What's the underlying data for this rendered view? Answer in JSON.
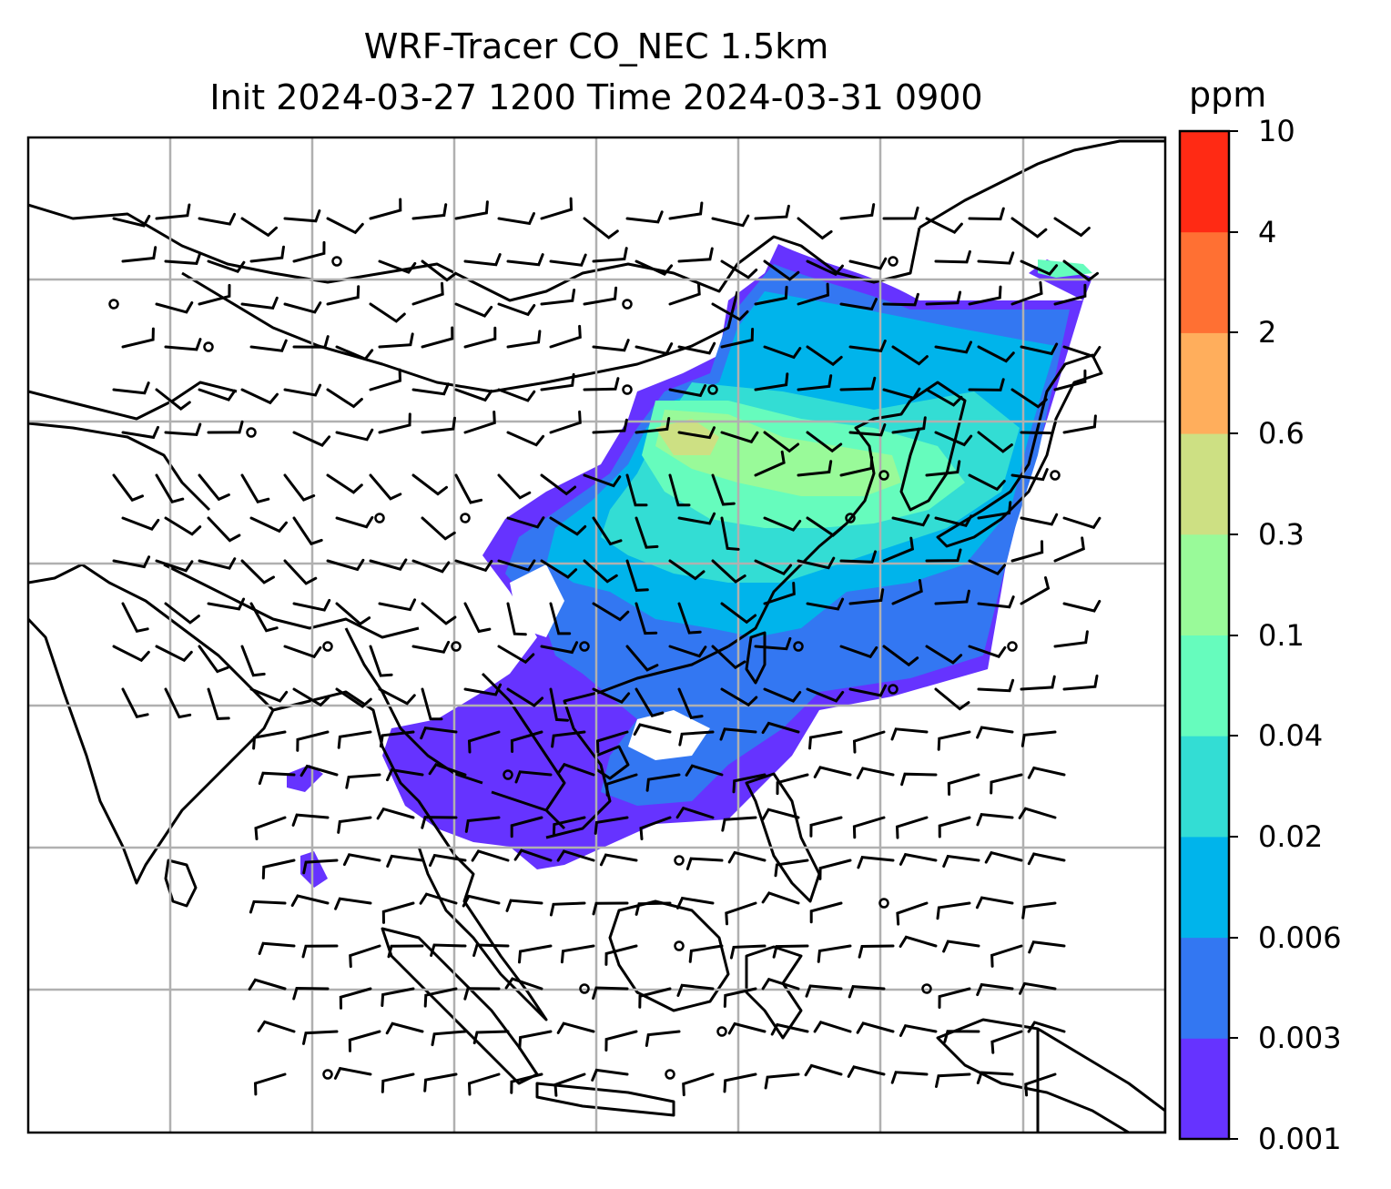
{
  "title_line1": "WRF-Tracer CO_NEC 1.5km",
  "title_line2": "Init 2024-03-27 1200 Time 2024-03-31 0900",
  "colorbar": {
    "unit": "ppm",
    "levels": [
      "0.001",
      "0.003",
      "0.006",
      "0.02",
      "0.04",
      "0.1",
      "0.3",
      "0.6",
      "2",
      "4",
      "10"
    ],
    "colors": [
      "#6633ff",
      "#3377f2",
      "#00b4eb",
      "#33ddd4",
      "#66fcbd",
      "#99fa99",
      "#cde083",
      "#ffae5c",
      "#ff7033",
      "#ff2a14"
    ]
  },
  "map": {
    "gridlines": true,
    "features": [
      "coastlines",
      "country-borders",
      "wind-barbs",
      "calm-circles"
    ],
    "shading_field": "CO tracer concentration"
  }
}
